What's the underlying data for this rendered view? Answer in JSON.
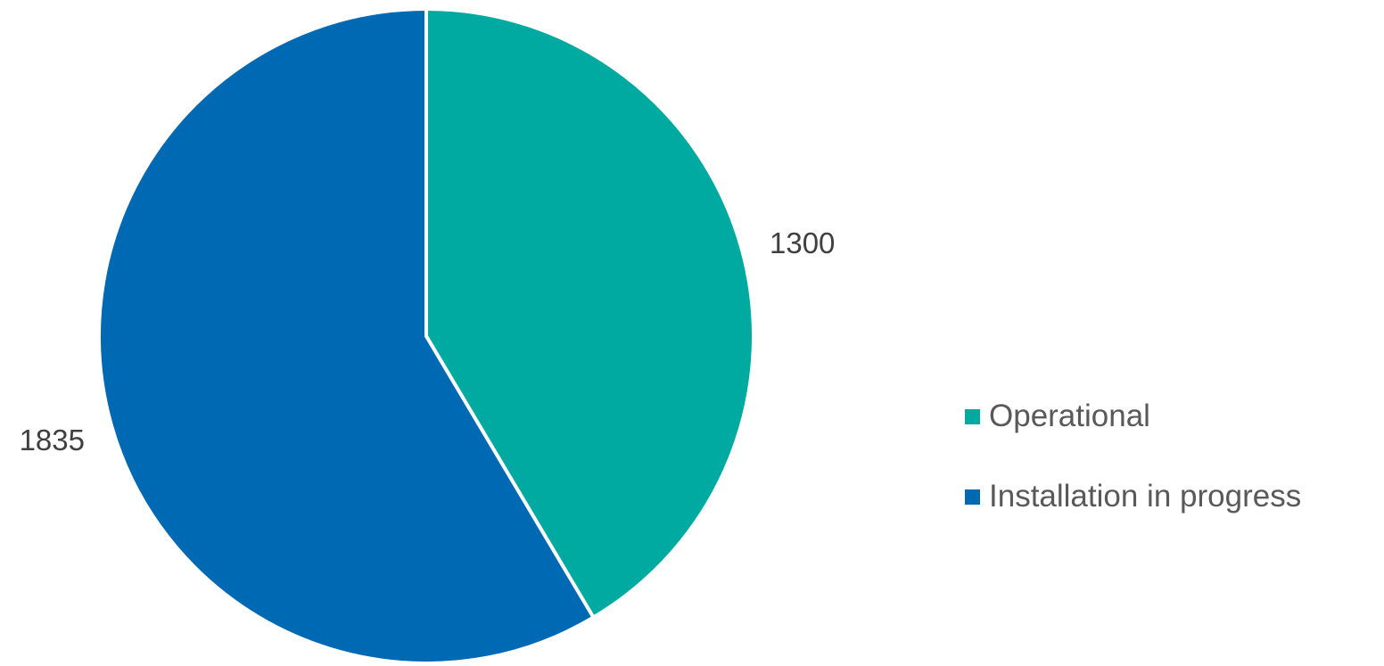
{
  "chart_data": {
    "type": "pie",
    "title": "",
    "series": [
      {
        "name": "Operational",
        "value": 1300,
        "color": "#00AAA0"
      },
      {
        "name": "Installation in progress",
        "value": 1835,
        "color": "#0069B4"
      }
    ],
    "data_labels": [
      "1300",
      "1835"
    ],
    "start_angle_deg": 0,
    "direction": "clockwise",
    "legend": {
      "position": "right",
      "items": [
        "Operational",
        "Installation in progress"
      ]
    }
  }
}
